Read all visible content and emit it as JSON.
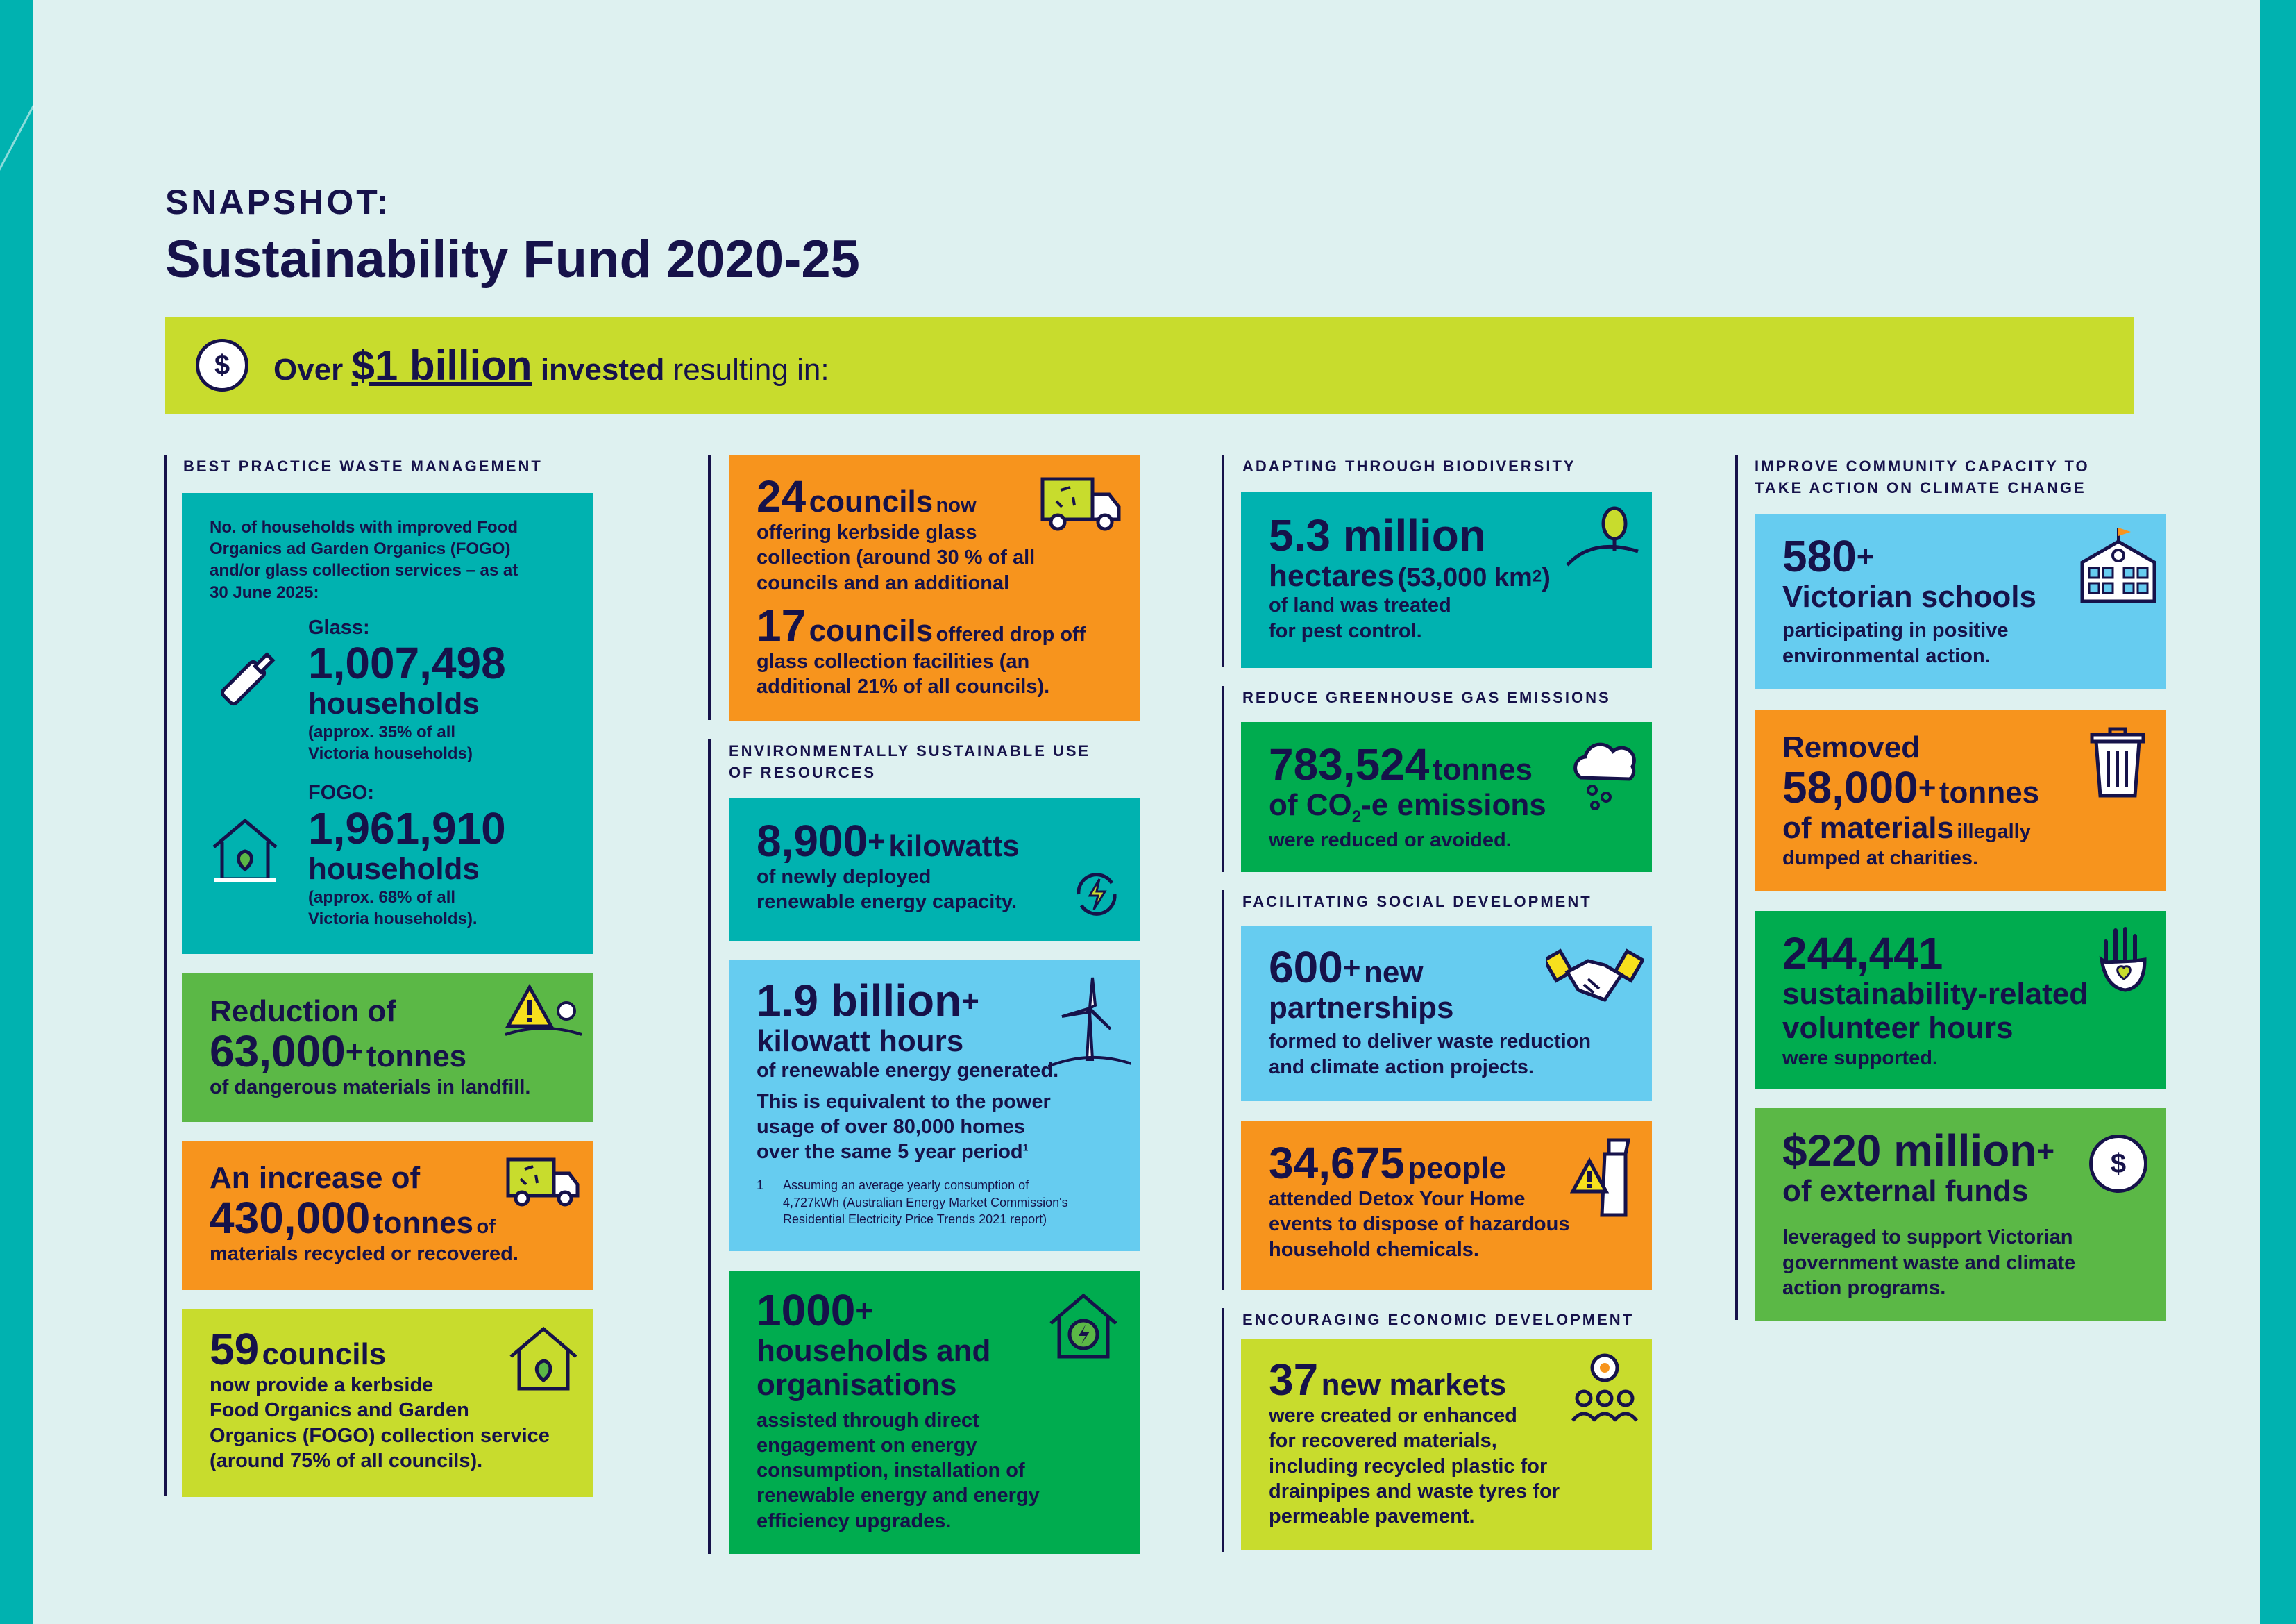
{
  "header": {
    "kicker": "SNAPSHOT:",
    "title": "Sustainability Fund 2020-25"
  },
  "banner": {
    "icon": "dollar-coin-icon",
    "coin_glyph": "$",
    "prefix": "Over",
    "amount": "$1 billion",
    "invested": "invested",
    "suffix": "resulting in:"
  },
  "sections": {
    "waste": "BEST PRACTICE WASTE MANAGEMENT",
    "resources_1": "ENVIRONMENTALLY SUSTAINABLE USE",
    "resources_2": "OF RESOURCES",
    "biodiversity": "ADAPTING THROUGH BIODIVERSITY",
    "emissions": "REDUCE GREENHOUSE GAS EMISSIONS",
    "social": "FACILITATING SOCIAL DEVELOPMENT",
    "economic": "ENCOURAGING ECONOMIC DEVELOPMENT",
    "community_1": "IMPROVE COMMUNITY CAPACITY TO",
    "community_2": "TAKE ACTION ON CLIMATE CHANGE"
  },
  "households": {
    "intro": [
      "No. of households with improved Food",
      "Organics ad Garden Organics (FOGO)",
      "and/or glass collection services – as at",
      "30 June 2025:"
    ],
    "glass_label": "Glass:",
    "glass_value": "1,007,498",
    "glass_unit": "households",
    "glass_note_1": "(approx. 35% of all",
    "glass_note_2": "Victoria households)",
    "fogo_label": "FOGO:",
    "fogo_value": "1,961,910",
    "fogo_unit": "households",
    "fogo_note_1": "(approx. 68% of all",
    "fogo_note_2": "Victoria households)."
  },
  "reduction": {
    "line1": "Reduction of",
    "value": "63,000",
    "sup": "+",
    "unit": "tonnes",
    "desc": "of dangerous materials in landfill."
  },
  "increase": {
    "line1": "An increase of",
    "value": "430,000",
    "unit": "tonnes",
    "of": "of",
    "desc": "materials recycled or recovered."
  },
  "councils59": {
    "value": "59",
    "unit": "councils",
    "lines": [
      "now provide a kerbside",
      "Food Organics and Garden",
      "Organics (FOGO) collection service",
      "(around 75% of all councils)."
    ]
  },
  "councils24": {
    "value": "24",
    "unit": "councils",
    "now": "now",
    "lines": [
      "offering kerbside glass",
      "collection (around 30 % of all",
      "councils and an additional"
    ],
    "value2": "17",
    "unit2": "councils",
    "tail": "offered drop off",
    "lines2": [
      "glass collection facilities (an",
      "additional 21% of all councils)."
    ]
  },
  "kilowatts": {
    "value": "8,900",
    "sup": "+",
    "unit": "kilowatts",
    "lines": [
      "of newly deployed",
      "renewable energy capacity."
    ]
  },
  "kwh": {
    "value": "1.9 billion",
    "sup": "+",
    "unit": "kilowatt hours",
    "line1": "of renewable energy generated.",
    "lines": [
      "This is equivalent to the power",
      "usage of over 80,000 homes",
      "over the same 5 year period"
    ],
    "fn_mark": "1",
    "fn_num": "1",
    "fn_lines": [
      "Assuming an average yearly consumption of",
      "4,727kWh (Australian Energy Market Commission's",
      "Residential Electricity Price Trends 2021 report)"
    ]
  },
  "households1000": {
    "value": "1000",
    "sup": "+",
    "unit_lines": [
      "households and",
      "organisations"
    ],
    "lines": [
      "assisted through direct",
      "engagement on energy",
      "consumption, installation of",
      "renewable energy and energy",
      "efficiency upgrades."
    ]
  },
  "hectares": {
    "value": "5.3 million",
    "unit": "hectares",
    "paren": "(53,000 km",
    "paren_sup": "2",
    "paren_end": ")",
    "lines": [
      "of land was treated",
      "for pest control."
    ]
  },
  "co2": {
    "value": "783,524",
    "unit": "tonnes",
    "line2a": "of CO",
    "line2sub": "2",
    "line2b": "-e emissions",
    "line3": "were reduced or avoided."
  },
  "partnerships": {
    "value": "600",
    "sup": "+",
    "unit1": "new",
    "unit2": "partnerships",
    "lines": [
      "formed to deliver waste reduction",
      "and climate action projects."
    ]
  },
  "people": {
    "value": "34,675",
    "unit": "people",
    "lines": [
      "attended Detox Your Home",
      "events to dispose of hazardous",
      "household chemicals."
    ]
  },
  "markets": {
    "value": "37",
    "unit": "new markets",
    "lines": [
      "were created or enhanced",
      "for recovered materials,",
      "including recycled plastic for",
      "drainpipes and waste tyres for",
      "permeable pavement."
    ]
  },
  "schools": {
    "value": "580",
    "sup": "+",
    "unit": "Victorian schools",
    "lines": [
      "participating in positive",
      "environmental action."
    ]
  },
  "removed": {
    "line1": "Removed",
    "value": "58,000",
    "sup": "+",
    "unit": "tonnes",
    "line3a": "of materials",
    "line3b": "illegally",
    "line4": "dumped at charities."
  },
  "volunteer": {
    "value": "244,441",
    "unit_lines": [
      "sustainability-related",
      "volunteer hours"
    ],
    "line": "were supported."
  },
  "funds": {
    "value": "$220 million",
    "sup": "+",
    "unit": "of external funds",
    "coin_glyph": "$",
    "lines": [
      "leveraged to support Victorian",
      "government waste and climate",
      "action programs."
    ]
  },
  "colors": {
    "navy": "#16124a",
    "teal": "#00b2b0",
    "lime": "#c8dc2d",
    "orange": "#f7941d",
    "green": "#5bb846",
    "dark_green": "#00ac4f",
    "sky": "#66ccf0",
    "bg": "#def1f0"
  }
}
